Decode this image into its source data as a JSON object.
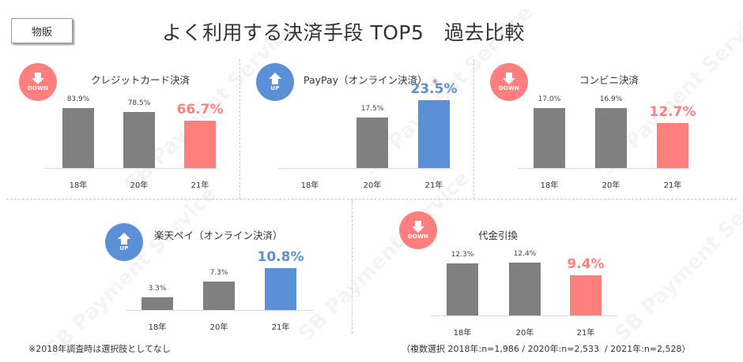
{
  "tag_label": "物販",
  "title": "よく利用する決済手段 TOP5　過去比較",
  "colors": {
    "down": "#ff7f7f",
    "up": "#5b8fd6",
    "gray": "#808080",
    "text": "#333333"
  },
  "icons": {
    "down": "arrow-down-icon",
    "up": "arrow-up-icon"
  },
  "panels": [
    {
      "title": "クレジットカード決済",
      "trend": "DOWN",
      "note": "",
      "bars": [
        {
          "year": "18年",
          "value": 83.9,
          "label": "83.9%"
        },
        {
          "year": "20年",
          "value": 78.5,
          "label": "78.5%"
        },
        {
          "year": "21年",
          "value": 66.7,
          "label": "66.7%"
        }
      ]
    },
    {
      "title": "PayPay（オンライン決済）",
      "trend": "UP",
      "note": "※",
      "bars": [
        {
          "year": "18年",
          "value": null,
          "label": ""
        },
        {
          "year": "20年",
          "value": 17.5,
          "label": "17.5%"
        },
        {
          "year": "21年",
          "value": 23.5,
          "label": "23.5%"
        }
      ]
    },
    {
      "title": "コンビニ決済",
      "trend": "DOWN",
      "note": "",
      "bars": [
        {
          "year": "18年",
          "value": 17.0,
          "label": "17.0%"
        },
        {
          "year": "20年",
          "value": 16.9,
          "label": "16.9%"
        },
        {
          "year": "21年",
          "value": 12.7,
          "label": "12.7%"
        }
      ]
    },
    {
      "title": "楽天ペイ（オンライン決済）",
      "trend": "UP",
      "note": "",
      "bars": [
        {
          "year": "18年",
          "value": 3.3,
          "label": "3.3%"
        },
        {
          "year": "20年",
          "value": 7.3,
          "label": "7.3%"
        },
        {
          "year": "21年",
          "value": 10.8,
          "label": "10.8%"
        }
      ]
    },
    {
      "title": "代金引換",
      "trend": "DOWN",
      "note": "",
      "bars": [
        {
          "year": "18年",
          "value": 12.3,
          "label": "12.3%"
        },
        {
          "year": "20年",
          "value": 12.4,
          "label": "12.4%"
        },
        {
          "year": "21年",
          "value": 9.4,
          "label": "9.4%"
        }
      ]
    }
  ],
  "footnote_left": "※2018年調査時は選択肢としてなし",
  "footnote_right": "（複数選択 2018年:n=1,986 / 2020年:n=2,533  / 2021年:n=2,528）",
  "watermark": "SB Payment Service",
  "chart_data": [
    {
      "type": "bar",
      "title": "クレジットカード決済",
      "categories": [
        "18年",
        "20年",
        "21年"
      ],
      "values": [
        83.9,
        78.5,
        66.7
      ],
      "trend": "DOWN",
      "xlabel": "",
      "ylabel": "%",
      "grid": false,
      "legend": "none"
    },
    {
      "type": "bar",
      "title": "PayPay（オンライン決済）※",
      "categories": [
        "18年",
        "20年",
        "21年"
      ],
      "values": [
        null,
        17.5,
        23.5
      ],
      "trend": "UP",
      "xlabel": "",
      "ylabel": "%",
      "grid": false,
      "legend": "none"
    },
    {
      "type": "bar",
      "title": "コンビニ決済",
      "categories": [
        "18年",
        "20年",
        "21年"
      ],
      "values": [
        17.0,
        16.9,
        12.7
      ],
      "trend": "DOWN",
      "xlabel": "",
      "ylabel": "%",
      "grid": false,
      "legend": "none"
    },
    {
      "type": "bar",
      "title": "楽天ペイ（オンライン決済）",
      "categories": [
        "18年",
        "20年",
        "21年"
      ],
      "values": [
        3.3,
        7.3,
        10.8
      ],
      "trend": "UP",
      "xlabel": "",
      "ylabel": "%",
      "grid": false,
      "legend": "none"
    },
    {
      "type": "bar",
      "title": "代金引換",
      "categories": [
        "18年",
        "20年",
        "21年"
      ],
      "values": [
        12.3,
        12.4,
        9.4
      ],
      "trend": "DOWN",
      "xlabel": "",
      "ylabel": "%",
      "grid": false,
      "legend": "none"
    }
  ]
}
